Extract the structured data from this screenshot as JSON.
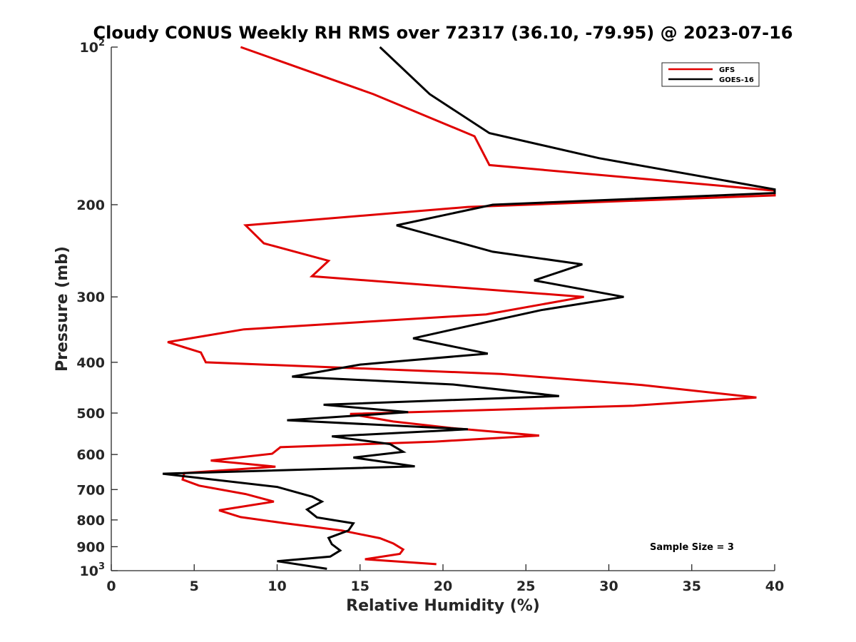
{
  "chart_data": {
    "type": "line",
    "title": "Cloudy CONUS Weekly RH RMS over 72317 (36.10, -79.95) @ 2023-07-16",
    "xlabel": "Relative Humidity (%)",
    "ylabel": "Pressure (mb)",
    "xlim": [
      0,
      40
    ],
    "ylim": [
      100,
      1000
    ],
    "y_scale": "log",
    "y_reversed": true,
    "grid": false,
    "legend_position": "top-right",
    "x_ticks": [
      0,
      5,
      10,
      15,
      20,
      25,
      30,
      35,
      40
    ],
    "x_tick_labels": [
      "0",
      "5",
      "10",
      "15",
      "20",
      "25",
      "30",
      "35",
      "40"
    ],
    "y_ticks": [
      100,
      200,
      300,
      400,
      500,
      600,
      700,
      800,
      900,
      1000
    ],
    "y_tick_labels": [
      {
        "base": "10",
        "sup": "2"
      },
      {
        "base": "200",
        "sup": ""
      },
      {
        "base": "300",
        "sup": ""
      },
      {
        "base": "400",
        "sup": ""
      },
      {
        "base": "500",
        "sup": ""
      },
      {
        "base": "600",
        "sup": ""
      },
      {
        "base": "700",
        "sup": ""
      },
      {
        "base": "800",
        "sup": ""
      },
      {
        "base": "900",
        "sup": ""
      },
      {
        "base": "10",
        "sup": "3"
      }
    ],
    "annotation": "Sample Size = 3",
    "series": [
      {
        "name": "GFS",
        "color": "#e00000",
        "points": [
          [
            7.8,
            100
          ],
          [
            15.8,
            123
          ],
          [
            21.9,
            148
          ],
          [
            22.8,
            168
          ],
          [
            40,
            188
          ],
          [
            40,
            192
          ],
          [
            21.5,
            202
          ],
          [
            8.1,
            219
          ],
          [
            9.2,
            237
          ],
          [
            13.1,
            256
          ],
          [
            12.1,
            274
          ],
          [
            28.5,
            300
          ],
          [
            22.6,
            324
          ],
          [
            8.0,
            346
          ],
          [
            3.4,
            366
          ],
          [
            5.4,
            383
          ],
          [
            5.7,
            400
          ],
          [
            23.5,
            421
          ],
          [
            32.0,
            442
          ],
          [
            38.9,
            467
          ],
          [
            31.5,
            484
          ],
          [
            14.4,
            502
          ],
          [
            17.0,
            519
          ],
          [
            20.5,
            534
          ],
          [
            25.8,
            552
          ],
          [
            19.5,
            567
          ],
          [
            10.2,
            581
          ],
          [
            9.7,
            598
          ],
          [
            6.0,
            616
          ],
          [
            9.9,
            633
          ],
          [
            4.4,
            651
          ],
          [
            4.3,
            670
          ],
          [
            5.3,
            688
          ],
          [
            8.1,
            714
          ],
          [
            9.8,
            738
          ],
          [
            6.5,
            767
          ],
          [
            7.8,
            790
          ],
          [
            10.5,
            812
          ],
          [
            13.9,
            838
          ],
          [
            16.2,
            867
          ],
          [
            17.0,
            887
          ],
          [
            17.6,
            911
          ],
          [
            17.4,
            929
          ],
          [
            15.3,
            951
          ],
          [
            19.6,
            972
          ]
        ]
      },
      {
        "name": "GOES-16",
        "color": "#000000",
        "points": [
          [
            16.2,
            100
          ],
          [
            19.2,
            123
          ],
          [
            22.8,
            146
          ],
          [
            29.4,
            163
          ],
          [
            40,
            187
          ],
          [
            40,
            190
          ],
          [
            23.0,
            200
          ],
          [
            17.2,
            219
          ],
          [
            23.0,
            246
          ],
          [
            28.4,
            260
          ],
          [
            25.5,
            279
          ],
          [
            30.9,
            300
          ],
          [
            25.9,
            318
          ],
          [
            20.8,
            345
          ],
          [
            18.2,
            360
          ],
          [
            22.7,
            385
          ],
          [
            15.0,
            404
          ],
          [
            10.9,
            426
          ],
          [
            20.6,
            441
          ],
          [
            27.0,
            464
          ],
          [
            12.8,
            482
          ],
          [
            17.9,
            498
          ],
          [
            10.6,
            516
          ],
          [
            21.5,
            537
          ],
          [
            13.3,
            554
          ],
          [
            16.8,
            573
          ],
          [
            17.6,
            593
          ],
          [
            14.6,
            608
          ],
          [
            18.3,
            632
          ],
          [
            3.1,
            653
          ],
          [
            10.0,
            692
          ],
          [
            12.1,
            722
          ],
          [
            12.7,
            738
          ],
          [
            11.8,
            764
          ],
          [
            12.4,
            791
          ],
          [
            14.6,
            812
          ],
          [
            14.3,
            838
          ],
          [
            13.1,
            866
          ],
          [
            13.3,
            890
          ],
          [
            13.8,
            915
          ],
          [
            13.2,
            940
          ],
          [
            10.0,
            959
          ],
          [
            13.0,
            992
          ]
        ]
      }
    ]
  }
}
